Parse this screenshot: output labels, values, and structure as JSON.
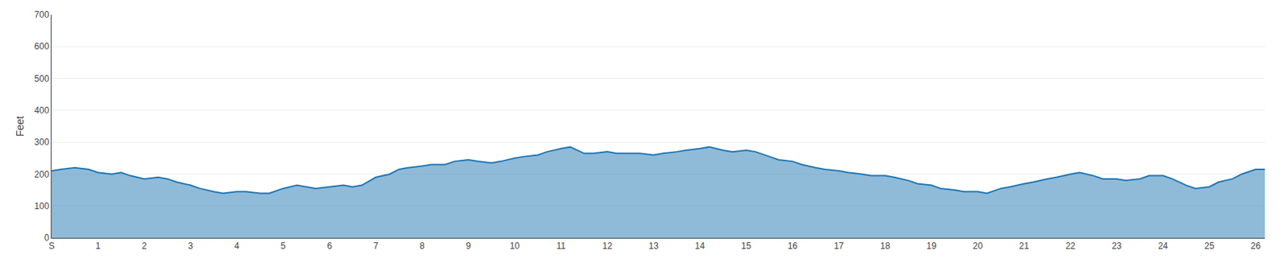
{
  "chart_data": {
    "type": "area",
    "ylabel": "Feet",
    "x": [
      0,
      0.2,
      0.5,
      0.8,
      1.0,
      1.3,
      1.5,
      1.7,
      2.0,
      2.3,
      2.5,
      2.7,
      3.0,
      3.2,
      3.5,
      3.7,
      4.0,
      4.2,
      4.5,
      4.7,
      5.0,
      5.3,
      5.5,
      5.7,
      6.0,
      6.3,
      6.5,
      6.7,
      7.0,
      7.3,
      7.5,
      7.7,
      8.0,
      8.2,
      8.5,
      8.7,
      9.0,
      9.2,
      9.5,
      9.7,
      10.0,
      10.2,
      10.5,
      10.7,
      11.0,
      11.2,
      11.5,
      11.7,
      12.0,
      12.2,
      12.5,
      12.7,
      13.0,
      13.2,
      13.5,
      13.7,
      14.0,
      14.2,
      14.5,
      14.7,
      15.0,
      15.2,
      15.5,
      15.7,
      16.0,
      16.2,
      16.5,
      16.7,
      17.0,
      17.2,
      17.5,
      17.7,
      18.0,
      18.2,
      18.5,
      18.7,
      19.0,
      19.2,
      19.5,
      19.7,
      20.0,
      20.2,
      20.5,
      20.7,
      21.0,
      21.2,
      21.5,
      21.7,
      22.0,
      22.2,
      22.5,
      22.7,
      23.0,
      23.2,
      23.5,
      23.7,
      24.0,
      24.2,
      24.5,
      24.7,
      25.0,
      25.2,
      25.5,
      25.7,
      26.0,
      26.2
    ],
    "values": [
      210,
      215,
      220,
      215,
      205,
      200,
      205,
      195,
      185,
      190,
      185,
      175,
      165,
      155,
      145,
      140,
      145,
      145,
      140,
      140,
      155,
      165,
      160,
      155,
      160,
      165,
      160,
      165,
      190,
      200,
      215,
      220,
      225,
      230,
      230,
      240,
      245,
      240,
      235,
      240,
      250,
      255,
      260,
      270,
      280,
      285,
      265,
      265,
      270,
      265,
      265,
      265,
      260,
      265,
      270,
      275,
      280,
      285,
      275,
      270,
      275,
      270,
      255,
      245,
      240,
      230,
      220,
      215,
      210,
      205,
      200,
      195,
      195,
      190,
      180,
      170,
      165,
      155,
      150,
      145,
      145,
      140,
      155,
      160,
      170,
      175,
      185,
      190,
      200,
      205,
      195,
      185,
      185,
      180,
      185,
      195,
      195,
      185,
      165,
      155,
      160,
      175,
      185,
      200,
      215,
      215
    ],
    "xlim": [
      0,
      26.2
    ],
    "xticks": [
      {
        "value": 0,
        "label": "S"
      },
      1,
      2,
      3,
      4,
      5,
      6,
      7,
      8,
      9,
      10,
      11,
      12,
      13,
      14,
      15,
      16,
      17,
      18,
      19,
      20,
      21,
      22,
      23,
      24,
      25,
      26
    ],
    "ylim": [
      0,
      700
    ],
    "yticks": [
      0,
      100,
      200,
      300,
      400,
      500,
      600,
      700
    ],
    "grid": "y"
  }
}
